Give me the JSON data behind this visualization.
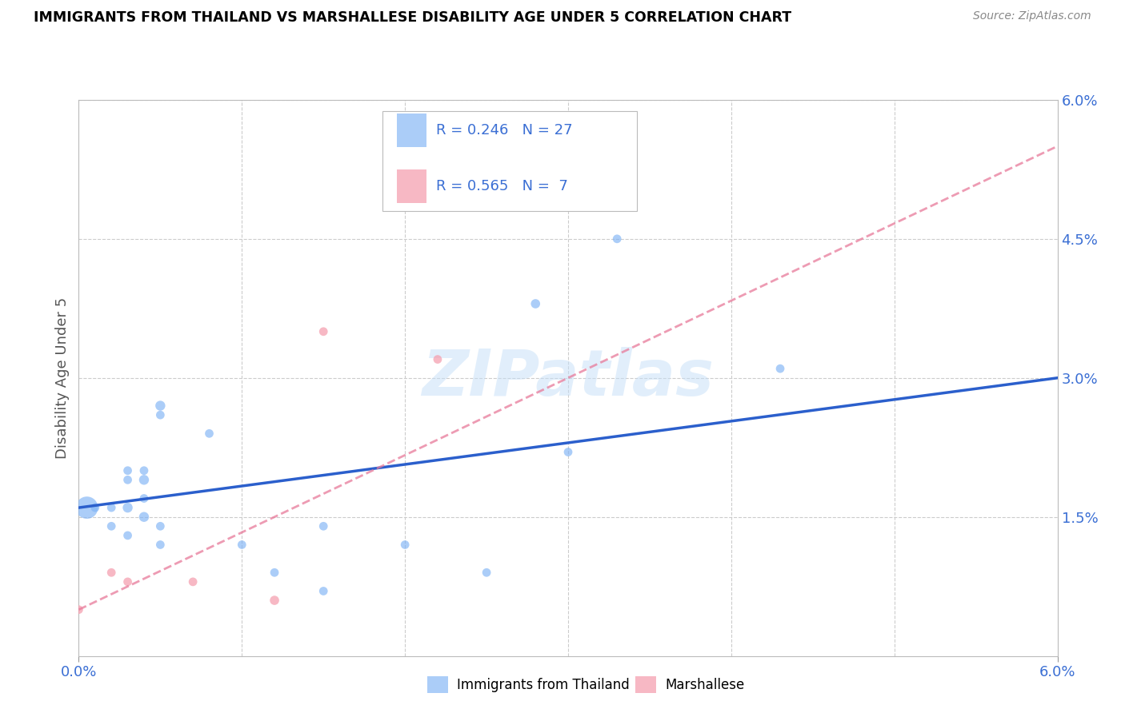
{
  "title": "IMMIGRANTS FROM THAILAND VS MARSHALLESE DISABILITY AGE UNDER 5 CORRELATION CHART",
  "source": "Source: ZipAtlas.com",
  "ylabel": "Disability Age Under 5",
  "xlim": [
    0.0,
    0.06
  ],
  "ylim": [
    0.0,
    0.06
  ],
  "legend_R1": "0.246",
  "legend_N1": "27",
  "legend_R2": "0.565",
  "legend_N2": " 7",
  "legend_label1": "Immigrants from Thailand",
  "legend_label2": "Marshallese",
  "blue_color": "#7fb3f5",
  "pink_color": "#f5a0b0",
  "trend_blue": "#2b5fcc",
  "trend_pink": "#e87a9a",
  "watermark": "ZIPatlas",
  "thailand_x": [
    0.0005,
    0.001,
    0.002,
    0.002,
    0.003,
    0.003,
    0.003,
    0.003,
    0.004,
    0.004,
    0.004,
    0.004,
    0.005,
    0.005,
    0.005,
    0.005,
    0.008,
    0.01,
    0.012,
    0.015,
    0.015,
    0.02,
    0.025,
    0.028,
    0.03,
    0.033,
    0.043
  ],
  "thailand_y": [
    0.016,
    0.016,
    0.014,
    0.016,
    0.013,
    0.016,
    0.019,
    0.02,
    0.015,
    0.017,
    0.019,
    0.02,
    0.014,
    0.026,
    0.027,
    0.012,
    0.024,
    0.012,
    0.009,
    0.007,
    0.014,
    0.012,
    0.009,
    0.038,
    0.022,
    0.045,
    0.031
  ],
  "thailand_size": [
    400,
    60,
    60,
    60,
    60,
    80,
    60,
    60,
    80,
    60,
    80,
    60,
    60,
    60,
    80,
    60,
    60,
    60,
    60,
    60,
    60,
    60,
    60,
    70,
    60,
    60,
    60
  ],
  "marshallese_x": [
    0.0,
    0.002,
    0.003,
    0.007,
    0.012,
    0.015,
    0.022
  ],
  "marshallese_y": [
    0.005,
    0.009,
    0.008,
    0.008,
    0.006,
    0.035,
    0.032
  ],
  "marshallese_size": [
    60,
    60,
    60,
    60,
    70,
    60,
    60
  ],
  "thailand_trend_x": [
    0.0,
    0.06
  ],
  "thailand_trend_y": [
    0.016,
    0.03
  ],
  "marshallese_trend_x": [
    0.0,
    0.06
  ],
  "marshallese_trend_y": [
    0.005,
    0.055
  ]
}
